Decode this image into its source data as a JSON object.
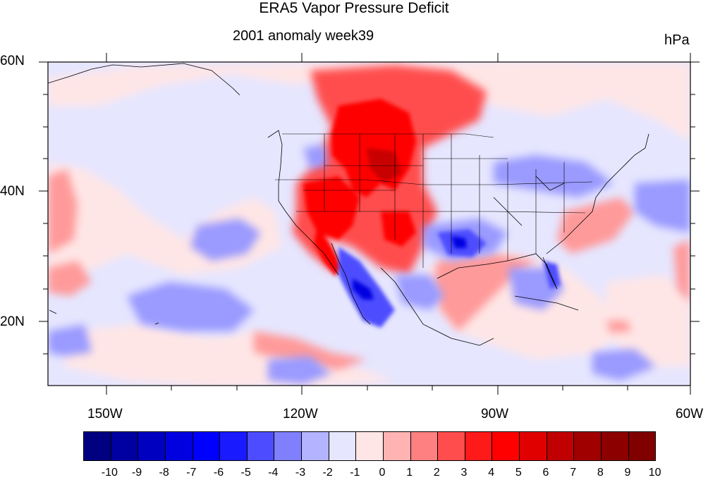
{
  "title": "ERA5 Vapor Pressure Deficit",
  "subtitle": "2001 anomaly week39",
  "units": "hPa",
  "latitude_labels": [
    "60N",
    "40N",
    "20N"
  ],
  "longitude_labels": [
    "150W",
    "120W",
    "90W",
    "60W"
  ],
  "colorbar": {
    "colors": [
      "#000080",
      "#0000a0",
      "#0000c0",
      "#0000e0",
      "#0000ff",
      "#1a1aff",
      "#4d4dff",
      "#8080ff",
      "#b3b3ff",
      "#e6e6ff",
      "#ffe6e6",
      "#ffb3b3",
      "#ff8080",
      "#ff4d4d",
      "#ff1a1a",
      "#ff0000",
      "#e00000",
      "#c00000",
      "#a00000",
      "#8c0000",
      "#800000"
    ],
    "tick_labels": [
      "-10",
      "-9",
      "-8",
      "-7",
      "-6",
      "-5",
      "-4",
      "-3",
      "-2",
      "-1",
      "0",
      "1",
      "2",
      "3",
      "4",
      "5",
      "6",
      "7",
      "8",
      "9",
      "10"
    ]
  },
  "map_colors": {
    "ocean_background": "#e6e6ff",
    "dry_anomaly": "#ff1a1a",
    "wet_anomaly": "#4d4dff"
  }
}
